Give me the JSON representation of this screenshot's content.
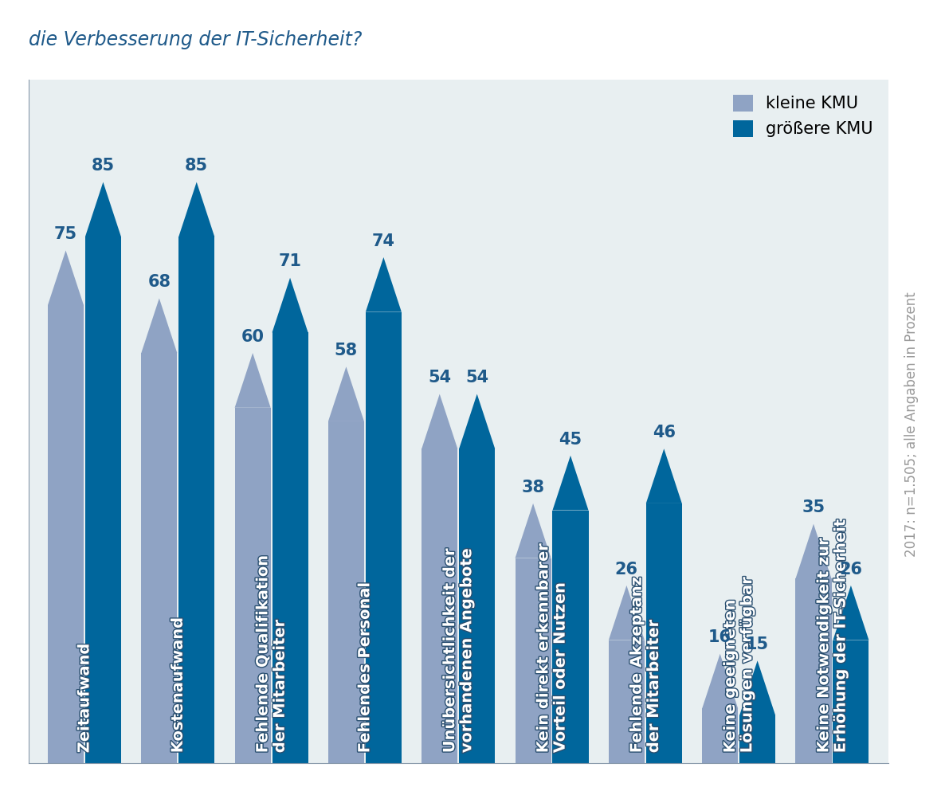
{
  "chart_data": {
    "type": "bar",
    "title": "die Verbesserung der IT-Sicherheit?",
    "categories": [
      "Zeitaufwand",
      "Kostenaufwand",
      "Fehlende Qualifikation\nder Mitarbeiter",
      "Fehlendes Personal",
      "Unübersichtlichkeit der\nvorhandenen Angebote",
      "Kein direkt erkennbarer\nVorteil oder Nutzen",
      "Fehlende Akzeptanz\nder Mitarbeiter",
      "Keine geeigneten\nLösungen verfügbar",
      "Keine Notwendigkeit zur\nErhöhung der IT-Sicherheit"
    ],
    "series": [
      {
        "name": "kleine KMU",
        "color": "#8fa3c4",
        "values": [
          75,
          68,
          60,
          58,
          54,
          38,
          26,
          16,
          35
        ]
      },
      {
        "name": "größere KMU",
        "color": "#00669c",
        "values": [
          85,
          85,
          71,
          74,
          54,
          45,
          46,
          15,
          26
        ]
      }
    ],
    "ylim": [
      0,
      100
    ],
    "tick_labels": false,
    "data_labels": true,
    "legend": "upper right",
    "note": "2017: n=1.505; alle Angaben in Prozent"
  }
}
